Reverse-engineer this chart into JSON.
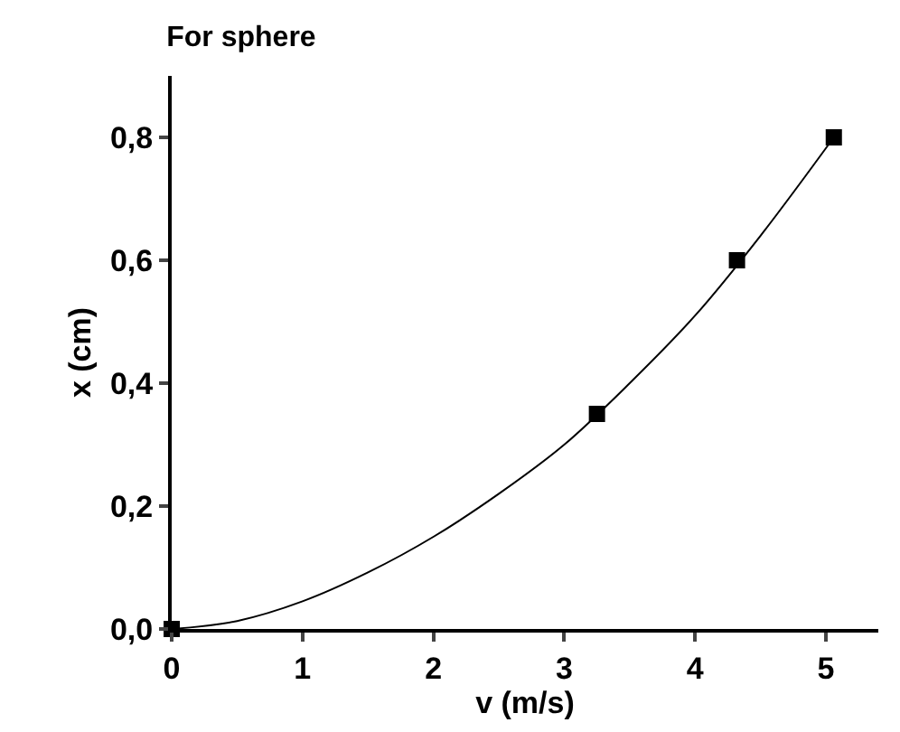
{
  "chart_data": {
    "type": "scatter",
    "title": "For sphere",
    "xlabel": "v (m/s)",
    "ylabel": "x (cm)",
    "series": [
      {
        "color": "#000000",
        "marker": "square",
        "x": [
          0,
          3.25,
          4.32,
          5.06
        ],
        "values": [
          0,
          0.35,
          0.6,
          0.8
        ]
      },
      {
        "type": "line",
        "color": "#000000",
        "marker": "none",
        "line_style": "solid",
        "x": [
          0,
          0.5,
          1,
          1.5,
          2,
          2.5,
          3,
          3.5,
          4,
          4.5,
          5.06
        ],
        "values": [
          0,
          0.013,
          0.045,
          0.092,
          0.15,
          0.22,
          0.3,
          0.4,
          0.51,
          0.64,
          0.8
        ]
      }
    ],
    "xlim": [
      0,
      5.4
    ],
    "xticks": [
      0,
      1,
      2,
      3,
      4,
      5
    ],
    "ylim": [
      0,
      0.9
    ],
    "yticks": [
      {
        "value": 0,
        "label": "0,0"
      },
      {
        "value": 0.2,
        "label": "0,2"
      },
      {
        "value": 0.4,
        "label": "0,4"
      },
      {
        "value": 0.6,
        "label": "0,6"
      },
      {
        "value": 0.8,
        "label": "0,8"
      }
    ]
  }
}
